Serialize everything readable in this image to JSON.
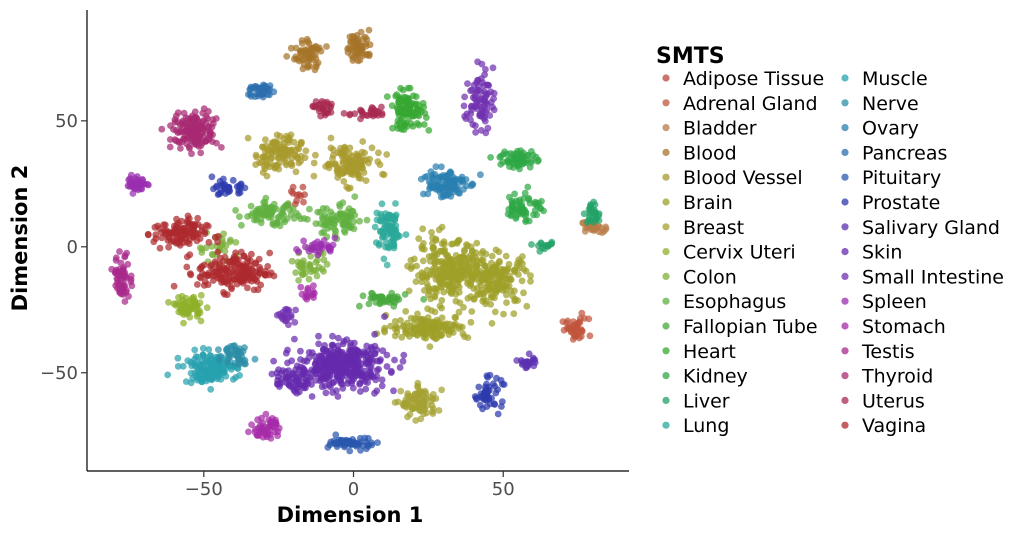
{
  "chart_data": {
    "type": "scatter",
    "title": "",
    "xlabel": "Dimension 1",
    "ylabel": "Dimension 2",
    "xlim": [
      -89,
      92
    ],
    "ylim": [
      -89,
      94
    ],
    "xticks": [
      {
        "value": -50,
        "label": "−50"
      },
      {
        "value": 0,
        "label": "0"
      },
      {
        "value": 50,
        "label": "50"
      }
    ],
    "yticks": [
      {
        "value": -50,
        "label": "−50"
      },
      {
        "value": 0,
        "label": "0"
      },
      {
        "value": 50,
        "label": "50"
      }
    ],
    "grid": false,
    "legend_title": "SMTS",
    "legend_position": "right",
    "series": [
      {
        "name": "Adipose Tissue",
        "color": "#b8433a",
        "clusters": [
          {
            "x": -18,
            "y": 20,
            "sx": 4,
            "sy": 3,
            "n": 12
          }
        ]
      },
      {
        "name": "Adrenal Gland",
        "color": "#c0553b",
        "clusters": [
          {
            "x": 74,
            "y": -33,
            "sx": 3,
            "sy": 3,
            "n": 40
          }
        ]
      },
      {
        "name": "Bladder",
        "color": "#b87a45",
        "clusters": [
          {
            "x": 80,
            "y": 8,
            "sx": 2.5,
            "sy": 1.5,
            "n": 30
          }
        ]
      },
      {
        "name": "Blood",
        "color": "#a6742a",
        "clusters": [
          {
            "x": -15,
            "y": 76,
            "sx": 3,
            "sy": 4,
            "n": 60
          },
          {
            "x": 2,
            "y": 80,
            "sx": 3,
            "sy": 4,
            "n": 60
          }
        ]
      },
      {
        "name": "Blood Vessel",
        "color": "#a89a2c",
        "clusters": [
          {
            "x": -25,
            "y": 37,
            "sx": 5,
            "sy": 5,
            "n": 110
          },
          {
            "x": -2,
            "y": 33,
            "sx": 6,
            "sy": 5,
            "n": 120
          }
        ]
      },
      {
        "name": "Brain",
        "color": "#9ea028",
        "clusters": [
          {
            "x": 32,
            "y": -10,
            "sx": 8,
            "sy": 8,
            "n": 260
          },
          {
            "x": 48,
            "y": -13,
            "sx": 7,
            "sy": 7,
            "n": 160
          },
          {
            "x": 25,
            "y": -32,
            "sx": 9,
            "sy": 3,
            "n": 140
          }
        ]
      },
      {
        "name": "Breast",
        "color": "#a5a233",
        "clusters": [
          {
            "x": 22,
            "y": -62,
            "sx": 4,
            "sy": 4,
            "n": 90
          }
        ]
      },
      {
        "name": "Cervix Uteri",
        "color": "#8fb02a",
        "clusters": [
          {
            "x": -55,
            "y": -24,
            "sx": 3,
            "sy": 3,
            "n": 60
          }
        ]
      },
      {
        "name": "Colon",
        "color": "#7cb03a",
        "clusters": [
          {
            "x": -45,
            "y": 0,
            "sx": 5,
            "sy": 4,
            "n": 30
          },
          {
            "x": -15,
            "y": -8,
            "sx": 4,
            "sy": 4,
            "n": 40
          }
        ]
      },
      {
        "name": "Esophagus",
        "color": "#5fb040",
        "clusters": [
          {
            "x": -28,
            "y": 13,
            "sx": 6,
            "sy": 3,
            "n": 80
          },
          {
            "x": -5,
            "y": 10,
            "sx": 6,
            "sy": 4,
            "n": 80
          }
        ]
      },
      {
        "name": "Fallopian Tube",
        "color": "#45a83a",
        "clusters": [
          {
            "x": 10,
            "y": -21,
            "sx": 5,
            "sy": 2,
            "n": 40
          }
        ]
      },
      {
        "name": "Heart",
        "color": "#36a832",
        "clusters": [
          {
            "x": 18,
            "y": 54,
            "sx": 4,
            "sy": 5,
            "n": 100
          }
        ]
      },
      {
        "name": "Kidney",
        "color": "#2ea845",
        "clusters": [
          {
            "x": 55,
            "y": 35,
            "sx": 4,
            "sy": 2.5,
            "n": 60
          },
          {
            "x": 57,
            "y": 16,
            "sx": 4,
            "sy": 4,
            "n": 60
          }
        ]
      },
      {
        "name": "Liver",
        "color": "#22a268",
        "clusters": [
          {
            "x": 80,
            "y": 13,
            "sx": 2,
            "sy": 3,
            "n": 30
          },
          {
            "x": 64,
            "y": 0,
            "sx": 2,
            "sy": 1,
            "n": 15
          }
        ]
      },
      {
        "name": "Lung",
        "color": "#2aa898",
        "clusters": [
          {
            "x": 12,
            "y": 6,
            "sx": 3,
            "sy": 6,
            "n": 80
          }
        ]
      },
      {
        "name": "Muscle",
        "color": "#27a1ae",
        "clusters": [
          {
            "x": -48,
            "y": -48,
            "sx": 6,
            "sy": 4,
            "n": 140
          }
        ]
      },
      {
        "name": "Nerve",
        "color": "#2b8ea6",
        "clusters": [
          {
            "x": -39,
            "y": -42,
            "sx": 3,
            "sy": 3,
            "n": 40
          }
        ]
      },
      {
        "name": "Ovary",
        "color": "#2a7fb0",
        "clusters": [
          {
            "x": 30,
            "y": 25,
            "sx": 5,
            "sy": 4,
            "n": 110
          }
        ]
      },
      {
        "name": "Pancreas",
        "color": "#2b6fae",
        "clusters": [
          {
            "x": -31,
            "y": 62,
            "sx": 3,
            "sy": 2,
            "n": 40
          }
        ]
      },
      {
        "name": "Pituitary",
        "color": "#2a58ad",
        "clusters": [
          {
            "x": 0,
            "y": -78,
            "sx": 5,
            "sy": 1.5,
            "n": 60
          }
        ]
      },
      {
        "name": "Prostate",
        "color": "#2d3aad",
        "clusters": [
          {
            "x": -42,
            "y": 23,
            "sx": 3,
            "sy": 2,
            "n": 35
          },
          {
            "x": 45,
            "y": -58,
            "sx": 3,
            "sy": 4,
            "n": 50
          }
        ]
      },
      {
        "name": "Salivary Gland",
        "color": "#5a2fb0",
        "clusters": [
          {
            "x": 58,
            "y": -46,
            "sx": 2,
            "sy": 2,
            "n": 20
          }
        ]
      },
      {
        "name": "Skin",
        "color": "#6529ad",
        "clusters": [
          {
            "x": -4,
            "y": -47,
            "sx": 10,
            "sy": 6,
            "n": 360
          },
          {
            "x": -20,
            "y": -53,
            "sx": 4,
            "sy": 3,
            "n": 60
          }
        ]
      },
      {
        "name": "Small Intestine",
        "color": "#7030b0",
        "clusters": [
          {
            "x": 42,
            "y": 58,
            "sx": 3,
            "sy": 8,
            "n": 80
          },
          {
            "x": -22,
            "y": -27,
            "sx": 2,
            "sy": 3,
            "n": 20
          }
        ]
      },
      {
        "name": "Spleen",
        "color": "#9a2eb0",
        "clusters": [
          {
            "x": -72,
            "y": 25,
            "sx": 2.5,
            "sy": 2,
            "n": 40
          },
          {
            "x": -12,
            "y": 0,
            "sx": 4,
            "sy": 2,
            "n": 30
          }
        ]
      },
      {
        "name": "Stomach",
        "color": "#a62ba8",
        "clusters": [
          {
            "x": -29,
            "y": -72,
            "sx": 3,
            "sy": 3,
            "n": 50
          },
          {
            "x": -15,
            "y": -18,
            "sx": 1.5,
            "sy": 3,
            "n": 15
          }
        ]
      },
      {
        "name": "Testis",
        "color": "#a8288a",
        "clusters": [
          {
            "x": -77,
            "y": -12,
            "sx": 2,
            "sy": 6,
            "n": 60
          }
        ]
      },
      {
        "name": "Thyroid",
        "color": "#a82a72",
        "clusters": [
          {
            "x": -53,
            "y": 46,
            "sx": 5,
            "sy": 5,
            "n": 150
          }
        ]
      },
      {
        "name": "Uterus",
        "color": "#a82a50",
        "clusters": [
          {
            "x": -10,
            "y": 55,
            "sx": 3,
            "sy": 2,
            "n": 30
          },
          {
            "x": 5,
            "y": 53,
            "sx": 4,
            "sy": 1.5,
            "n": 30
          }
        ]
      },
      {
        "name": "Vagina",
        "color": "#ad2a2e",
        "clusters": [
          {
            "x": -58,
            "y": 5,
            "sx": 6,
            "sy": 4,
            "n": 110
          },
          {
            "x": -40,
            "y": -10,
            "sx": 8,
            "sy": 5,
            "n": 170
          }
        ]
      }
    ]
  }
}
